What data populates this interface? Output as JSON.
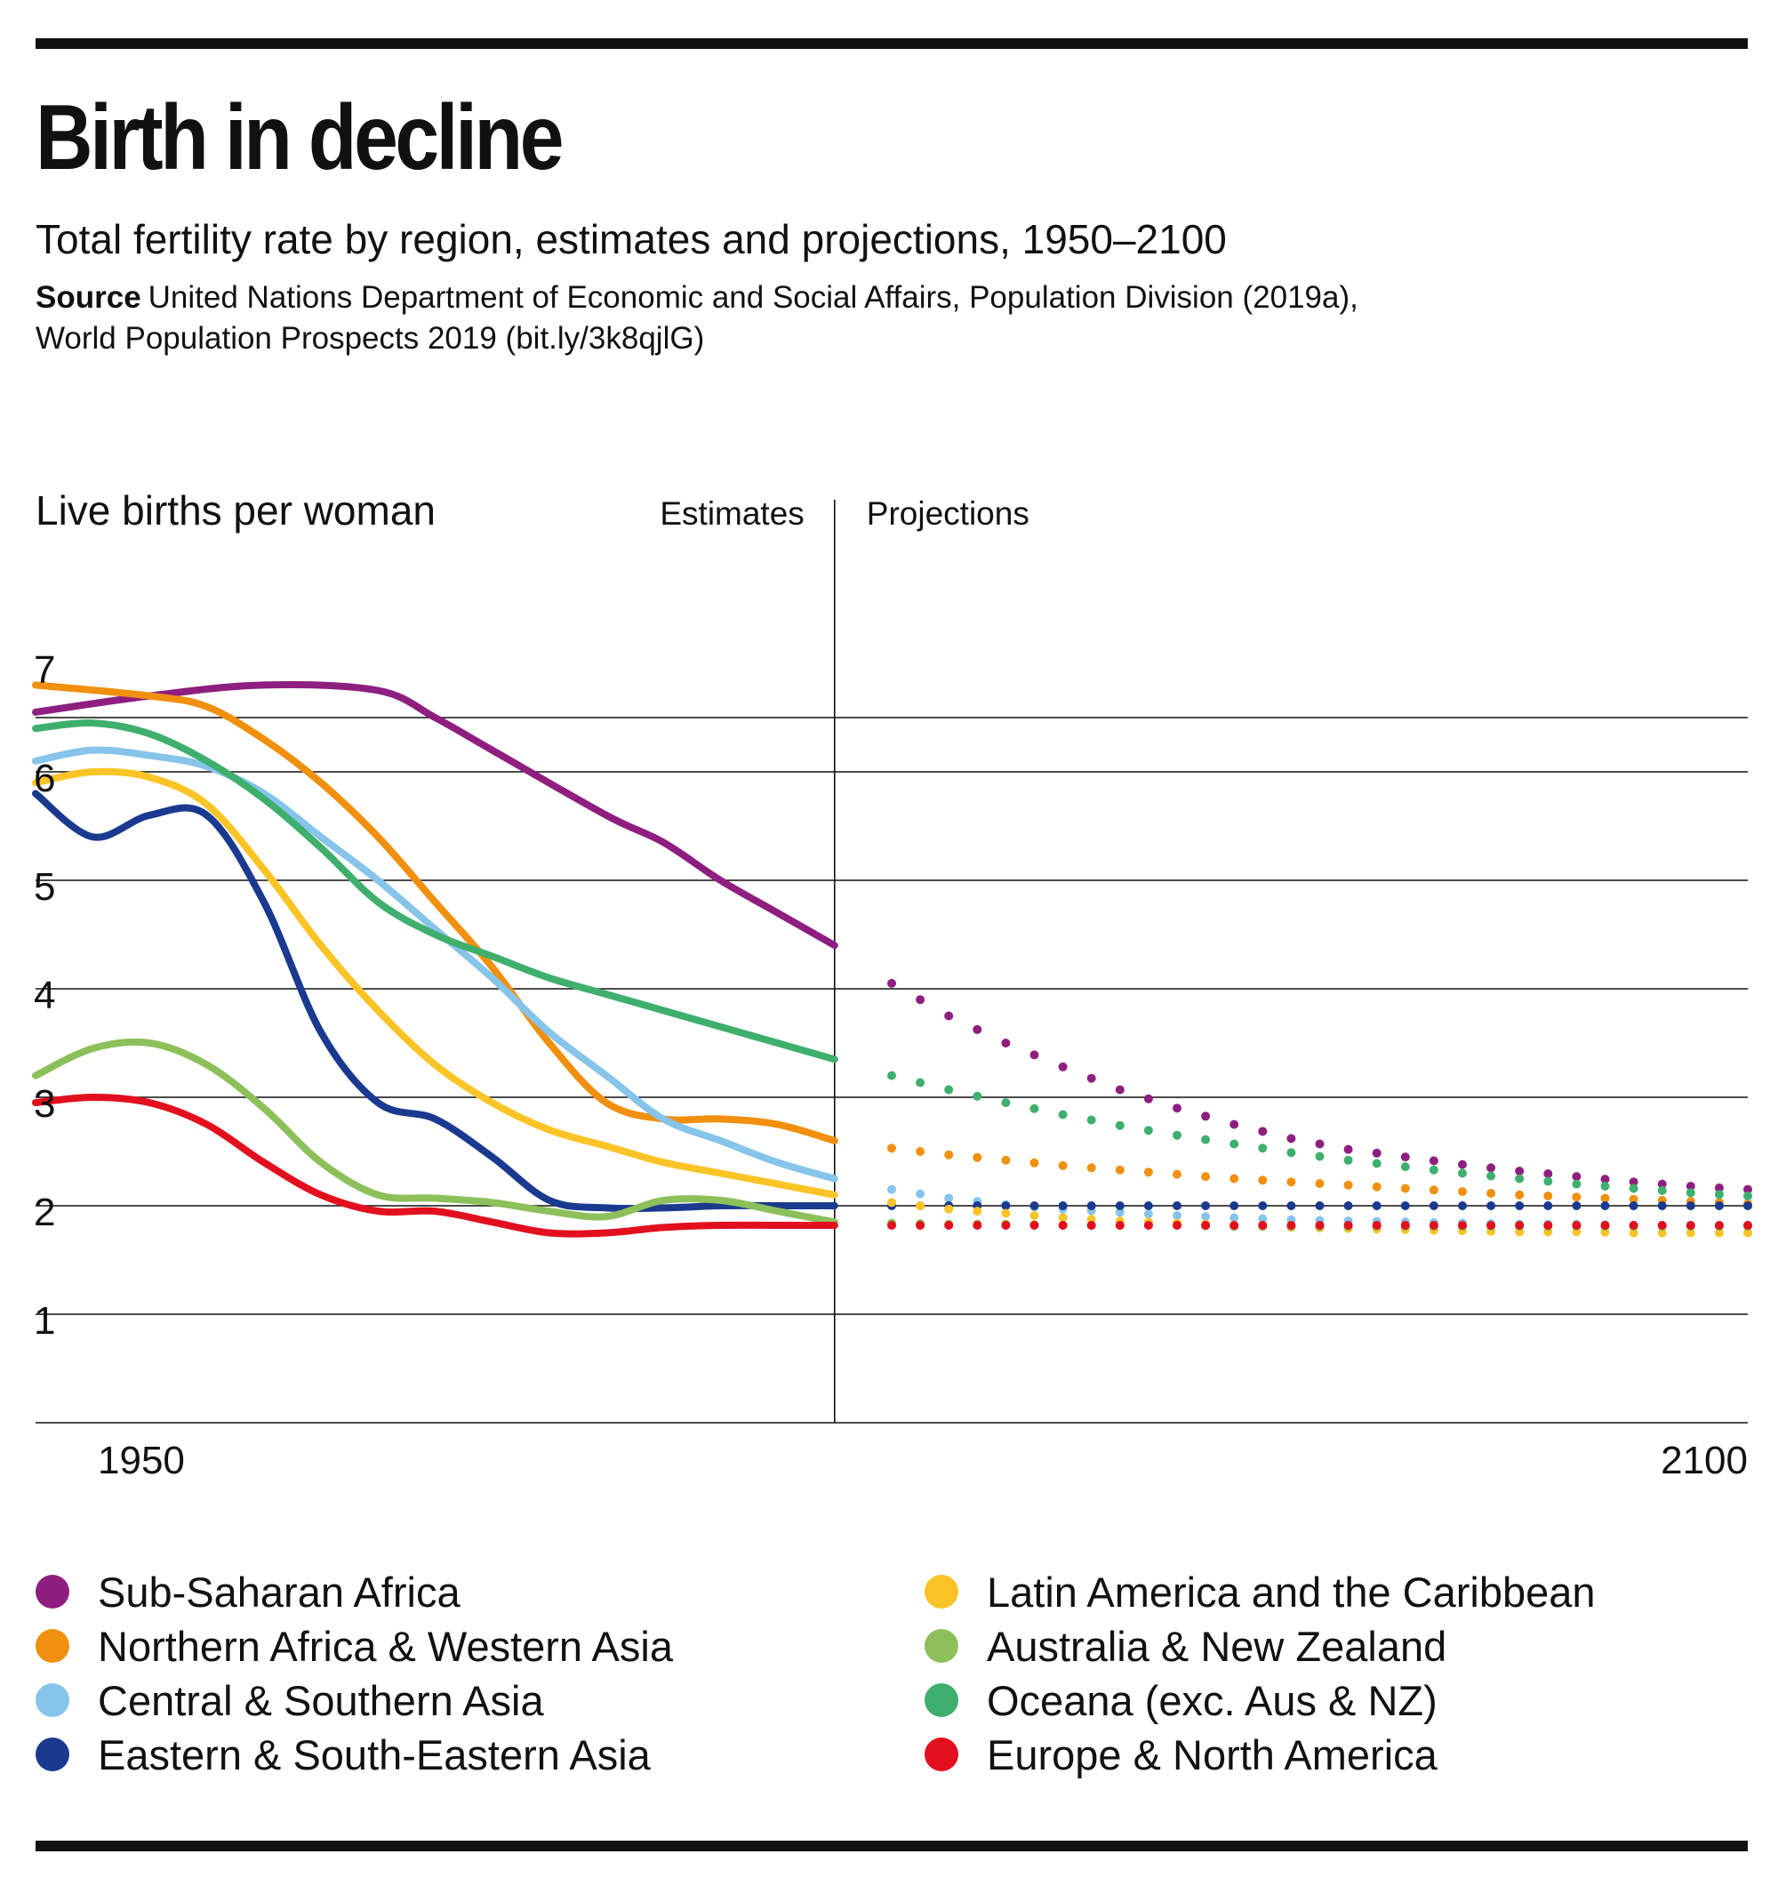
{
  "header": {
    "title": "Birth in decline",
    "subtitle": "Total fertility rate by region, estimates and projections, 1950–2100",
    "source_label": "Source",
    "source_line1": "United Nations Department of Economic and Social Affairs, Population Division (2019a),",
    "source_line2": "World Population Prospects 2019 (bit.ly/3k8qjlG)"
  },
  "chart_data": {
    "type": "line",
    "ylabel": "Live births per woman",
    "section_labels": {
      "estimates": "Estimates",
      "projections": "Projections"
    },
    "divider_year": 2020,
    "xlim": [
      1950,
      2100
    ],
    "ylim": [
      0,
      7
    ],
    "yticks": [
      1,
      2,
      3,
      4,
      5,
      6,
      7
    ],
    "xtick_labels": [
      "1950",
      "2100"
    ],
    "grid": true,
    "series": [
      {
        "name": "Sub-Saharan Africa",
        "color": "#8E1F80",
        "estimates": [
          [
            1950,
            6.55
          ],
          [
            1960,
            6.7
          ],
          [
            1970,
            6.8
          ],
          [
            1980,
            6.75
          ],
          [
            1985,
            6.5
          ],
          [
            1990,
            6.2
          ],
          [
            2000,
            5.6
          ],
          [
            2005,
            5.35
          ],
          [
            2010,
            5.0
          ],
          [
            2015,
            4.7
          ],
          [
            2020,
            4.4
          ]
        ],
        "projections": [
          [
            2025,
            4.05
          ],
          [
            2030,
            3.75
          ],
          [
            2035,
            3.5
          ],
          [
            2040,
            3.28
          ],
          [
            2045,
            3.07
          ],
          [
            2050,
            2.9
          ],
          [
            2055,
            2.75
          ],
          [
            2060,
            2.62
          ],
          [
            2065,
            2.52
          ],
          [
            2070,
            2.45
          ],
          [
            2075,
            2.38
          ],
          [
            2080,
            2.32
          ],
          [
            2085,
            2.27
          ],
          [
            2090,
            2.22
          ],
          [
            2095,
            2.18
          ],
          [
            2100,
            2.15
          ]
        ]
      },
      {
        "name": "Northern Africa & Western Asia",
        "color": "#F0900E",
        "estimates": [
          [
            1950,
            6.8
          ],
          [
            1960,
            6.7
          ],
          [
            1965,
            6.6
          ],
          [
            1970,
            6.3
          ],
          [
            1975,
            5.9
          ],
          [
            1980,
            5.4
          ],
          [
            1985,
            4.8
          ],
          [
            1990,
            4.2
          ],
          [
            1995,
            3.5
          ],
          [
            2000,
            2.95
          ],
          [
            2005,
            2.8
          ],
          [
            2010,
            2.8
          ],
          [
            2015,
            2.75
          ],
          [
            2020,
            2.6
          ]
        ],
        "projections": [
          [
            2025,
            2.53
          ],
          [
            2030,
            2.47
          ],
          [
            2035,
            2.42
          ],
          [
            2040,
            2.37
          ],
          [
            2045,
            2.33
          ],
          [
            2050,
            2.29
          ],
          [
            2055,
            2.25
          ],
          [
            2060,
            2.22
          ],
          [
            2065,
            2.19
          ],
          [
            2070,
            2.16
          ],
          [
            2075,
            2.13
          ],
          [
            2080,
            2.1
          ],
          [
            2085,
            2.08
          ],
          [
            2090,
            2.06
          ],
          [
            2095,
            2.04
          ],
          [
            2100,
            2.02
          ]
        ]
      },
      {
        "name": "Central & Southern Asia",
        "color": "#86C4EA",
        "estimates": [
          [
            1950,
            6.1
          ],
          [
            1955,
            6.2
          ],
          [
            1960,
            6.15
          ],
          [
            1965,
            6.05
          ],
          [
            1970,
            5.8
          ],
          [
            1975,
            5.4
          ],
          [
            1980,
            5.0
          ],
          [
            1985,
            4.55
          ],
          [
            1990,
            4.1
          ],
          [
            1995,
            3.6
          ],
          [
            2000,
            3.2
          ],
          [
            2005,
            2.8
          ],
          [
            2010,
            2.6
          ],
          [
            2015,
            2.4
          ],
          [
            2020,
            2.25
          ]
        ],
        "projections": [
          [
            2025,
            2.15
          ],
          [
            2030,
            2.07
          ],
          [
            2035,
            2.01
          ],
          [
            2040,
            1.97
          ],
          [
            2045,
            1.94
          ],
          [
            2050,
            1.91
          ],
          [
            2055,
            1.89
          ],
          [
            2060,
            1.87
          ],
          [
            2065,
            1.86
          ],
          [
            2070,
            1.85
          ],
          [
            2075,
            1.84
          ],
          [
            2080,
            1.83
          ],
          [
            2085,
            1.83
          ],
          [
            2090,
            1.82
          ],
          [
            2095,
            1.82
          ],
          [
            2100,
            1.82
          ]
        ]
      },
      {
        "name": "Eastern & South-Eastern Asia",
        "color": "#1A3A8F",
        "estimates": [
          [
            1950,
            5.8
          ],
          [
            1955,
            5.4
          ],
          [
            1960,
            5.6
          ],
          [
            1965,
            5.6
          ],
          [
            1970,
            4.8
          ],
          [
            1975,
            3.6
          ],
          [
            1980,
            2.95
          ],
          [
            1985,
            2.8
          ],
          [
            1990,
            2.45
          ],
          [
            1995,
            2.05
          ],
          [
            2000,
            1.98
          ],
          [
            2005,
            1.98
          ],
          [
            2010,
            2.0
          ],
          [
            2015,
            2.0
          ],
          [
            2020,
            2.0
          ]
        ],
        "projections": [
          [
            2025,
            2.0
          ],
          [
            2030,
            2.0
          ],
          [
            2035,
            2.0
          ],
          [
            2040,
            2.0
          ],
          [
            2045,
            2.0
          ],
          [
            2050,
            2.0
          ],
          [
            2055,
            2.0
          ],
          [
            2060,
            2.0
          ],
          [
            2065,
            2.0
          ],
          [
            2070,
            2.0
          ],
          [
            2075,
            2.0
          ],
          [
            2080,
            2.0
          ],
          [
            2085,
            2.0
          ],
          [
            2090,
            2.0
          ],
          [
            2095,
            2.0
          ],
          [
            2100,
            2.0
          ]
        ]
      },
      {
        "name": "Latin America and the Caribbean",
        "color": "#FAC427",
        "estimates": [
          [
            1950,
            5.9
          ],
          [
            1955,
            6.0
          ],
          [
            1960,
            5.95
          ],
          [
            1965,
            5.7
          ],
          [
            1970,
            5.1
          ],
          [
            1975,
            4.4
          ],
          [
            1980,
            3.8
          ],
          [
            1985,
            3.3
          ],
          [
            1990,
            2.95
          ],
          [
            1995,
            2.7
          ],
          [
            2000,
            2.55
          ],
          [
            2005,
            2.4
          ],
          [
            2010,
            2.3
          ],
          [
            2015,
            2.2
          ],
          [
            2020,
            2.1
          ]
        ],
        "projections": [
          [
            2025,
            2.03
          ],
          [
            2030,
            1.97
          ],
          [
            2035,
            1.93
          ],
          [
            2040,
            1.89
          ],
          [
            2045,
            1.86
          ],
          [
            2050,
            1.84
          ],
          [
            2055,
            1.82
          ],
          [
            2060,
            1.8
          ],
          [
            2065,
            1.79
          ],
          [
            2070,
            1.78
          ],
          [
            2075,
            1.77
          ],
          [
            2080,
            1.76
          ],
          [
            2085,
            1.76
          ],
          [
            2090,
            1.75
          ],
          [
            2095,
            1.75
          ],
          [
            2100,
            1.75
          ]
        ]
      },
      {
        "name": "Australia & New Zealand",
        "color": "#8DC05A",
        "estimates": [
          [
            1950,
            3.2
          ],
          [
            1955,
            3.45
          ],
          [
            1960,
            3.5
          ],
          [
            1965,
            3.3
          ],
          [
            1970,
            2.9
          ],
          [
            1975,
            2.4
          ],
          [
            1980,
            2.1
          ],
          [
            1985,
            2.07
          ],
          [
            1990,
            2.03
          ],
          [
            1995,
            1.95
          ],
          [
            2000,
            1.9
          ],
          [
            2005,
            2.05
          ],
          [
            2010,
            2.05
          ],
          [
            2015,
            1.95
          ],
          [
            2020,
            1.85
          ]
        ],
        "projections": [
          [
            2025,
            1.84
          ],
          [
            2030,
            1.83
          ],
          [
            2035,
            1.83
          ],
          [
            2040,
            1.82
          ],
          [
            2045,
            1.82
          ],
          [
            2050,
            1.82
          ],
          [
            2055,
            1.81
          ],
          [
            2060,
            1.81
          ],
          [
            2065,
            1.81
          ],
          [
            2070,
            1.81
          ],
          [
            2075,
            1.81
          ],
          [
            2080,
            1.81
          ],
          [
            2085,
            1.81
          ],
          [
            2090,
            1.81
          ],
          [
            2095,
            1.81
          ],
          [
            2100,
            1.81
          ]
        ]
      },
      {
        "name": "Oceana (exc. Aus & NZ)",
        "color": "#3FAF6E",
        "estimates": [
          [
            1950,
            6.4
          ],
          [
            1955,
            6.45
          ],
          [
            1960,
            6.35
          ],
          [
            1965,
            6.1
          ],
          [
            1970,
            5.75
          ],
          [
            1975,
            5.3
          ],
          [
            1980,
            4.8
          ],
          [
            1985,
            4.5
          ],
          [
            1990,
            4.3
          ],
          [
            1995,
            4.1
          ],
          [
            2000,
            3.95
          ],
          [
            2005,
            3.8
          ],
          [
            2010,
            3.65
          ],
          [
            2015,
            3.5
          ],
          [
            2020,
            3.35
          ]
        ],
        "projections": [
          [
            2025,
            3.2
          ],
          [
            2030,
            3.07
          ],
          [
            2035,
            2.95
          ],
          [
            2040,
            2.84
          ],
          [
            2045,
            2.74
          ],
          [
            2050,
            2.65
          ],
          [
            2055,
            2.57
          ],
          [
            2060,
            2.49
          ],
          [
            2065,
            2.42
          ],
          [
            2070,
            2.36
          ],
          [
            2075,
            2.3
          ],
          [
            2080,
            2.25
          ],
          [
            2085,
            2.2
          ],
          [
            2090,
            2.16
          ],
          [
            2095,
            2.12
          ],
          [
            2100,
            2.09
          ]
        ]
      },
      {
        "name": "Europe & North America",
        "color": "#E2101E",
        "estimates": [
          [
            1950,
            2.95
          ],
          [
            1955,
            3.0
          ],
          [
            1960,
            2.95
          ],
          [
            1965,
            2.75
          ],
          [
            1970,
            2.4
          ],
          [
            1975,
            2.1
          ],
          [
            1980,
            1.95
          ],
          [
            1985,
            1.95
          ],
          [
            1990,
            1.85
          ],
          [
            1995,
            1.75
          ],
          [
            2000,
            1.75
          ],
          [
            2005,
            1.8
          ],
          [
            2010,
            1.82
          ],
          [
            2015,
            1.82
          ],
          [
            2020,
            1.82
          ]
        ],
        "projections": [
          [
            2025,
            1.82
          ],
          [
            2030,
            1.82
          ],
          [
            2035,
            1.82
          ],
          [
            2040,
            1.82
          ],
          [
            2045,
            1.82
          ],
          [
            2050,
            1.82
          ],
          [
            2055,
            1.82
          ],
          [
            2060,
            1.82
          ],
          [
            2065,
            1.82
          ],
          [
            2070,
            1.82
          ],
          [
            2075,
            1.82
          ],
          [
            2080,
            1.82
          ],
          [
            2085,
            1.82
          ],
          [
            2090,
            1.82
          ],
          [
            2095,
            1.82
          ],
          [
            2100,
            1.82
          ]
        ]
      }
    ]
  }
}
